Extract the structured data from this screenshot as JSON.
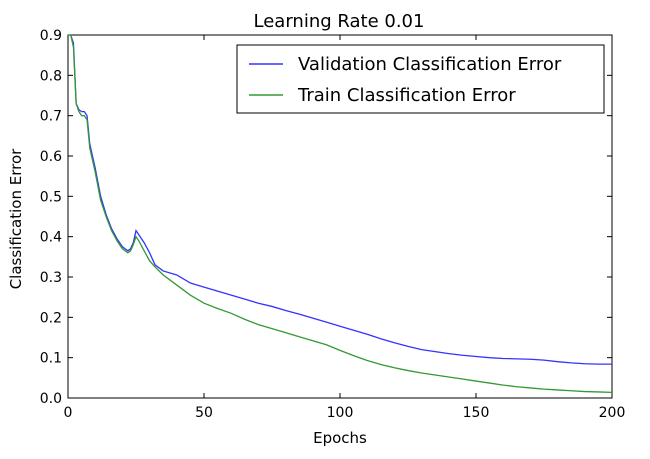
{
  "chart_data": {
    "type": "line",
    "title": "Learning Rate 0.01",
    "xlabel": "Epochs",
    "ylabel": "Classification Error",
    "xlim": [
      0,
      200
    ],
    "ylim": [
      0.0,
      0.9
    ],
    "xticks": [
      0,
      50,
      100,
      150,
      200
    ],
    "xtick_labels": [
      "0",
      "50",
      "100",
      "150",
      "200"
    ],
    "yticks": [
      0.0,
      0.1,
      0.2,
      0.3,
      0.4,
      0.5,
      0.6,
      0.7,
      0.8,
      0.9
    ],
    "ytick_labels": [
      "0.0",
      "0.1",
      "0.2",
      "0.3",
      "0.4",
      "0.5",
      "0.6",
      "0.7",
      "0.8",
      "0.9"
    ],
    "grid": false,
    "legend_position": "top-right",
    "series": [
      {
        "name": "Validation Classification Error",
        "color": "#3333ff",
        "x": [
          0,
          1,
          2,
          3,
          4,
          5,
          6,
          7,
          8,
          10,
          12,
          14,
          16,
          18,
          20,
          22,
          23,
          24,
          25,
          26,
          28,
          30,
          32,
          35,
          40,
          45,
          50,
          55,
          60,
          65,
          70,
          75,
          80,
          85,
          90,
          95,
          100,
          105,
          110,
          115,
          120,
          125,
          130,
          135,
          140,
          145,
          150,
          155,
          160,
          165,
          170,
          175,
          180,
          185,
          190,
          195,
          200
        ],
        "y": [
          0.9,
          0.9,
          0.88,
          0.73,
          0.715,
          0.71,
          0.71,
          0.7,
          0.63,
          0.57,
          0.5,
          0.455,
          0.42,
          0.395,
          0.375,
          0.365,
          0.37,
          0.385,
          0.415,
          0.405,
          0.385,
          0.36,
          0.33,
          0.315,
          0.305,
          0.285,
          0.275,
          0.265,
          0.255,
          0.245,
          0.235,
          0.227,
          0.217,
          0.208,
          0.198,
          0.188,
          0.178,
          0.168,
          0.158,
          0.147,
          0.137,
          0.128,
          0.12,
          0.115,
          0.11,
          0.106,
          0.103,
          0.1,
          0.098,
          0.097,
          0.096,
          0.094,
          0.09,
          0.087,
          0.085,
          0.084,
          0.084
        ]
      },
      {
        "name": "Train Classification Error",
        "color": "#339933",
        "x": [
          0,
          1,
          2,
          3,
          4,
          5,
          6,
          7,
          8,
          10,
          12,
          14,
          16,
          18,
          20,
          22,
          23,
          24,
          25,
          26,
          28,
          30,
          32,
          35,
          40,
          45,
          50,
          55,
          60,
          65,
          70,
          75,
          80,
          85,
          90,
          95,
          100,
          105,
          110,
          115,
          120,
          125,
          130,
          135,
          140,
          145,
          150,
          155,
          160,
          165,
          170,
          175,
          180,
          185,
          190,
          195,
          200
        ],
        "y": [
          0.9,
          0.9,
          0.87,
          0.73,
          0.71,
          0.7,
          0.7,
          0.69,
          0.62,
          0.56,
          0.49,
          0.45,
          0.415,
          0.39,
          0.37,
          0.36,
          0.365,
          0.38,
          0.4,
          0.39,
          0.365,
          0.34,
          0.325,
          0.305,
          0.28,
          0.255,
          0.235,
          0.222,
          0.21,
          0.195,
          0.182,
          0.172,
          0.162,
          0.152,
          0.142,
          0.132,
          0.118,
          0.105,
          0.093,
          0.083,
          0.075,
          0.068,
          0.062,
          0.057,
          0.052,
          0.047,
          0.042,
          0.037,
          0.032,
          0.028,
          0.025,
          0.022,
          0.02,
          0.018,
          0.016,
          0.015,
          0.014
        ]
      }
    ]
  }
}
